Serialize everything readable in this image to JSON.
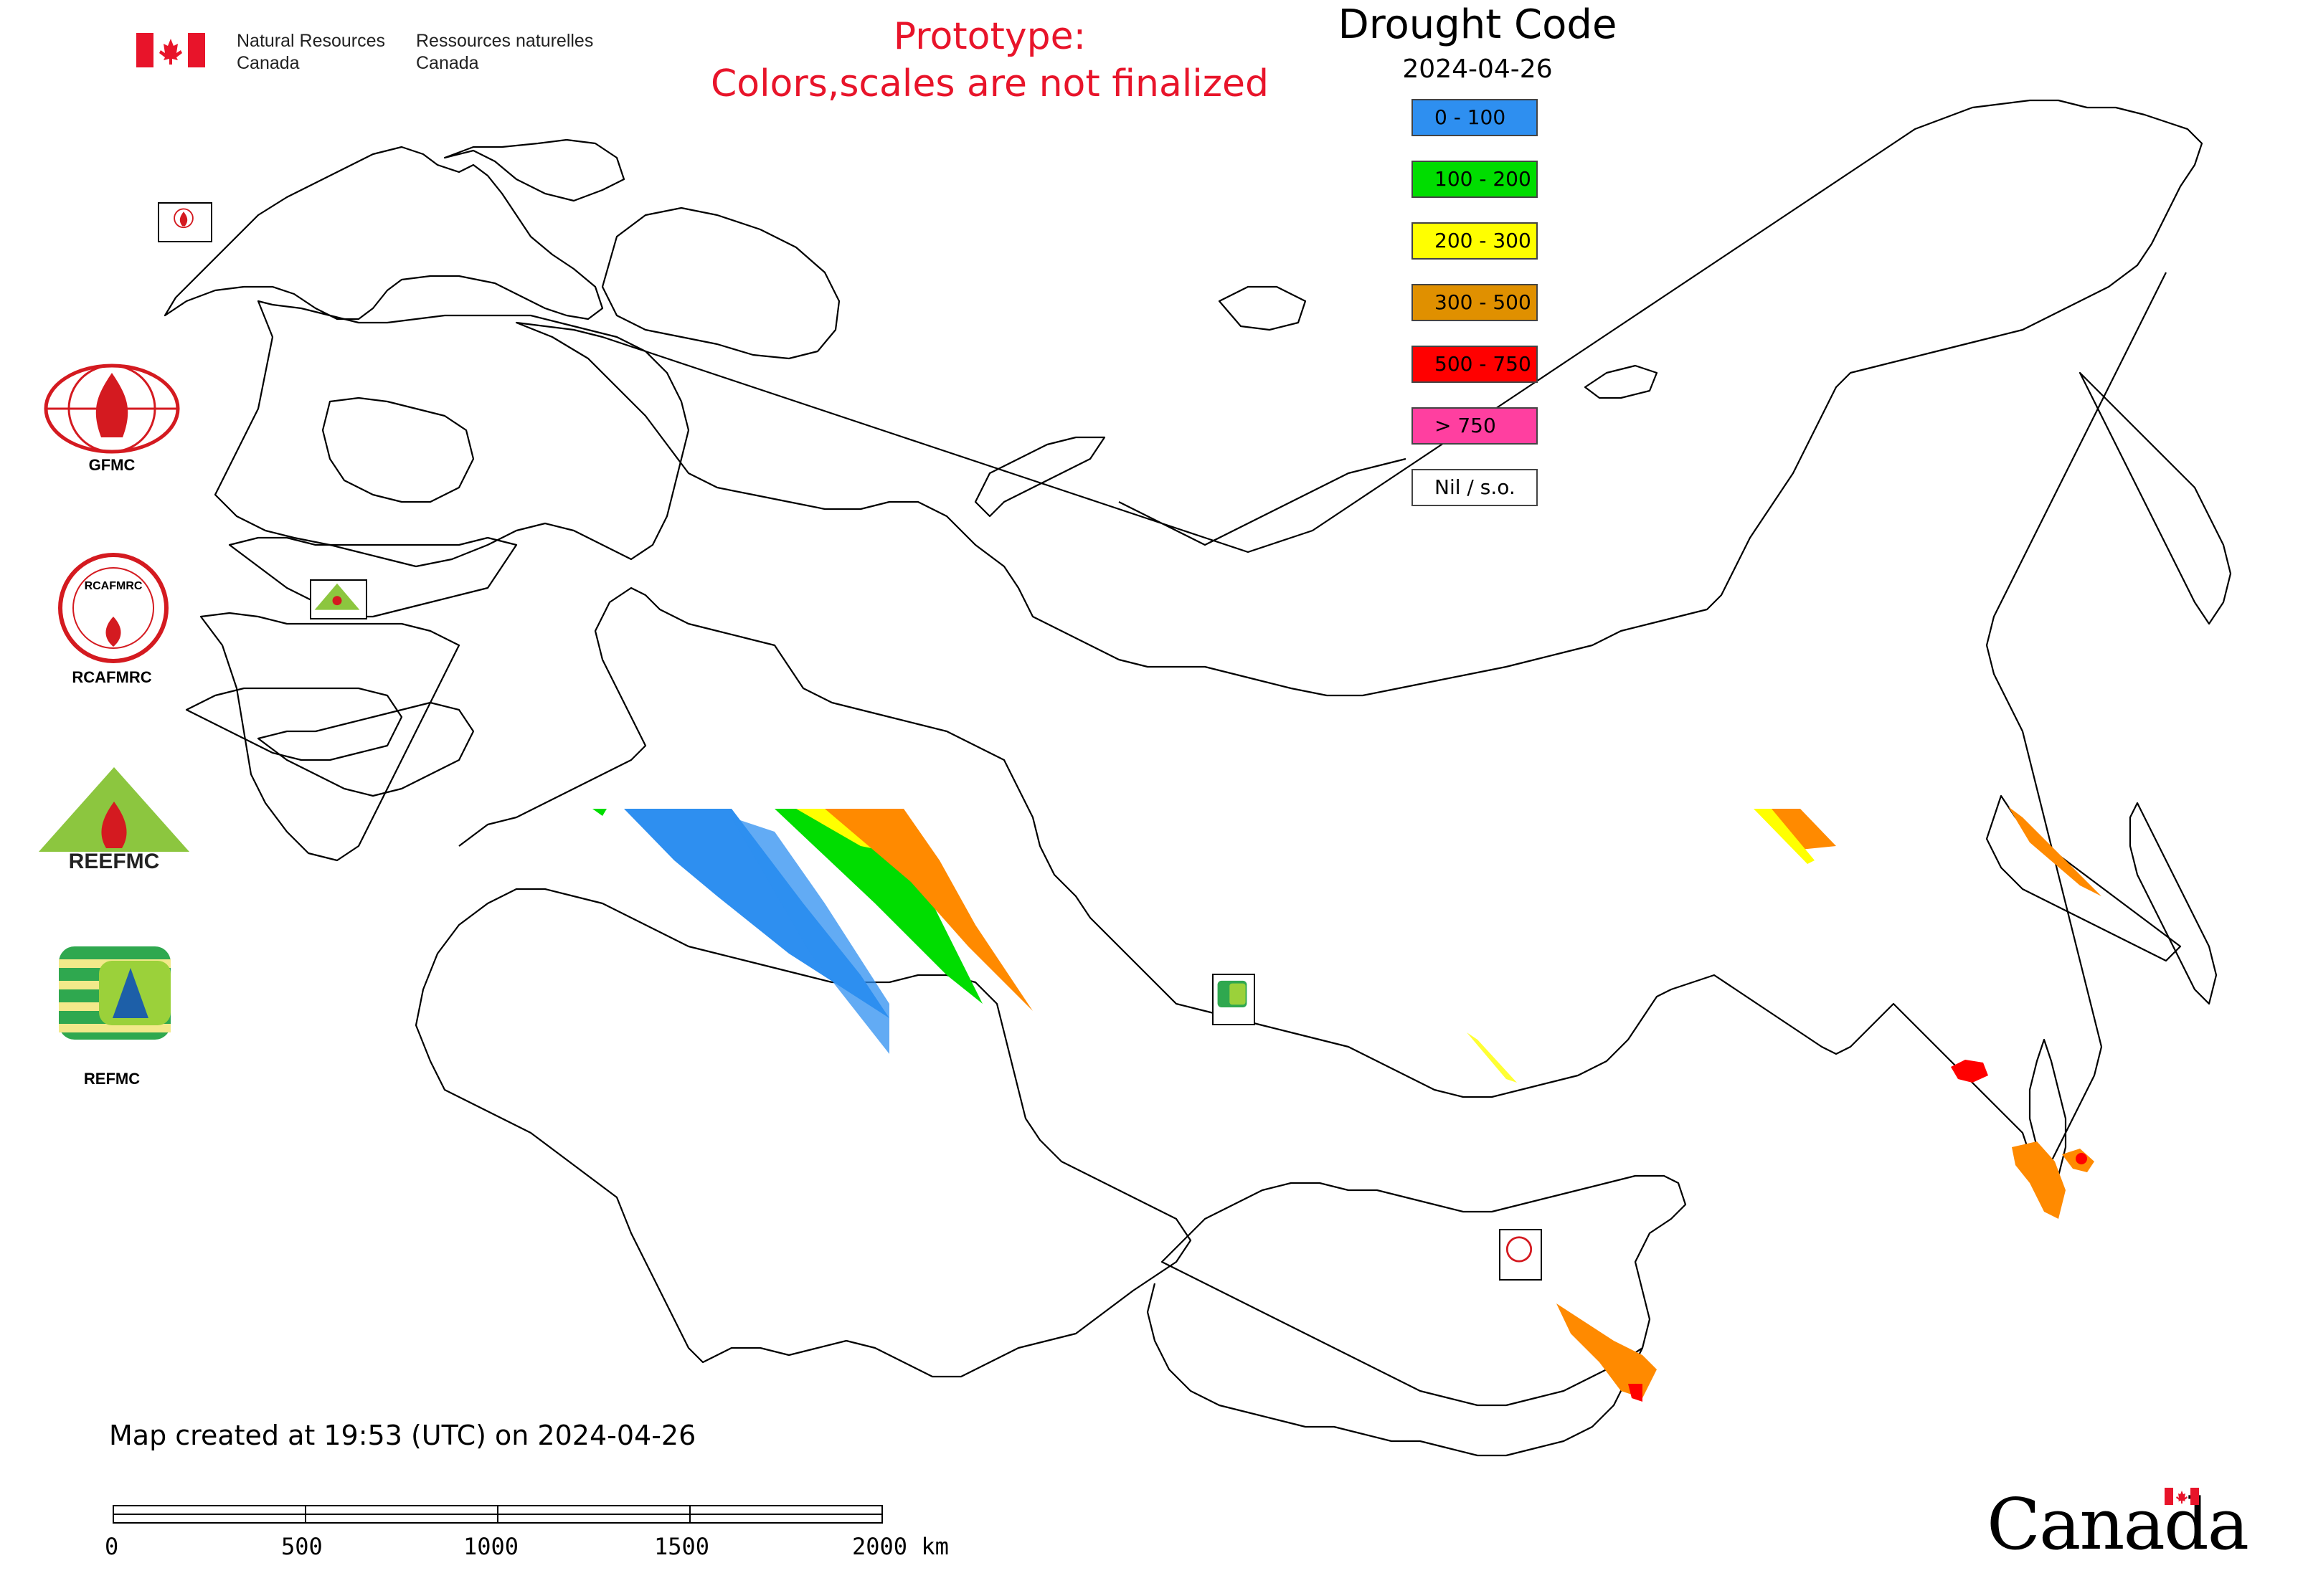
{
  "header": {
    "gov_en_line1": "Natural Resources",
    "gov_en_line2": "Canada",
    "gov_fr_line1": "Ressources naturelles",
    "gov_fr_line2": "Canada",
    "prototype_line1": "Prototype:",
    "prototype_line2": "Colors,scales are not finalized"
  },
  "legend": {
    "title": "Drought Code",
    "date": "2024-04-26",
    "items": [
      {
        "label": "0 - 100",
        "color": "#2e8ff0"
      },
      {
        "label": "100 - 200",
        "color": "#00dd00"
      },
      {
        "label": "200 - 300",
        "color": "#ffff00"
      },
      {
        "label": "300 - 500",
        "color": "#e09000"
      },
      {
        "label": "500 - 750",
        "color": "#ff0000"
      },
      {
        "label": "> 750",
        "color": "#ff3fa0"
      },
      {
        "label": "Nil / s.o.",
        "color": "#ffffff"
      }
    ]
  },
  "side_logos": {
    "gfmc": "GFMC",
    "rcafmrc": "RCAFMRC",
    "reefmc": "REEFMC",
    "refmc": "REFMC",
    "reefmc_mark_text": "REEFMC",
    "rcafmrc_mark_text": "RCAFMRC"
  },
  "footer": {
    "map_created": "Map created at 19:53 (UTC) on 2024-04-26",
    "scale_labels": [
      "0",
      "500",
      "1000",
      "1500",
      "2000 km"
    ],
    "canada_wordmark": "Canada"
  },
  "colors": {
    "outline": "#000000",
    "blue": "#2e8ff0",
    "green": "#00dd00",
    "yellow": "#ffff00",
    "orange": "#ff8a00",
    "red": "#ff0000",
    "title_red": "#e8142a"
  }
}
